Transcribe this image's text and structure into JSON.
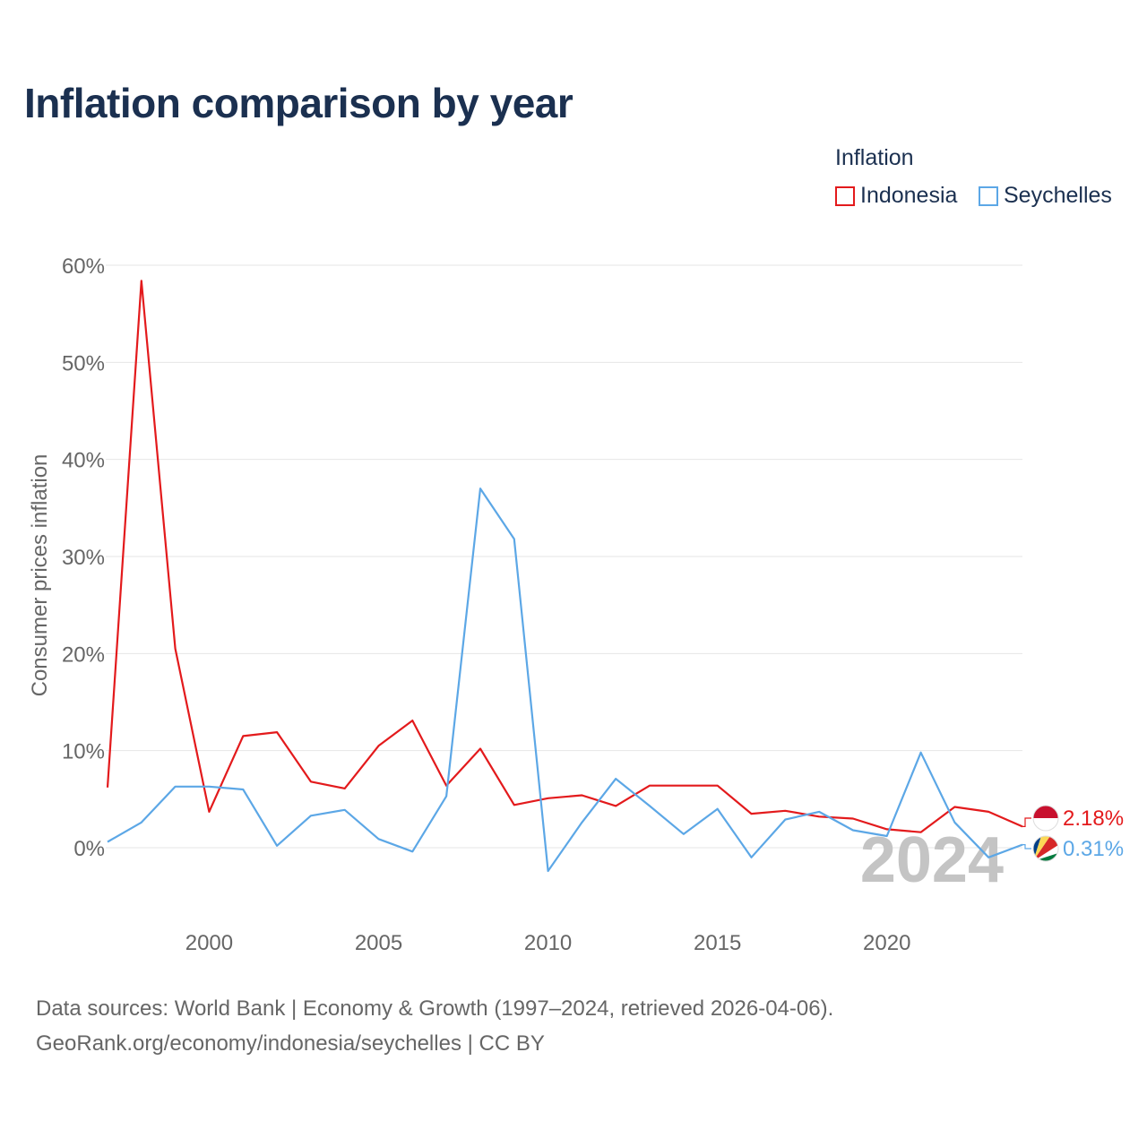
{
  "title": "Inflation comparison by year",
  "legend": {
    "title": "Inflation",
    "items": [
      {
        "name": "Indonesia",
        "color": "#e31a1c"
      },
      {
        "name": "Seychelles",
        "color": "#5ca7e6"
      }
    ]
  },
  "watermark_year": "2024",
  "end_labels": {
    "indonesia": "2.18%",
    "seychelles": "0.31%"
  },
  "source": {
    "line1": "Data sources: World Bank | Economy & Growth (1997–2024, retrieved 2026-04-06).",
    "line2": "GeoRank.org/economy/indonesia/seychelles | CC BY"
  },
  "chart_data": {
    "type": "line",
    "ylabel": "Consumer prices inflation",
    "xlabel": "",
    "x": [
      1997,
      1998,
      1999,
      2000,
      2001,
      2002,
      2003,
      2004,
      2005,
      2006,
      2007,
      2008,
      2009,
      2010,
      2011,
      2012,
      2013,
      2014,
      2015,
      2016,
      2017,
      2018,
      2019,
      2020,
      2021,
      2022,
      2023,
      2024
    ],
    "xlim": [
      1997,
      2024
    ],
    "ylim": [
      -6,
      60
    ],
    "y_ticks": [
      0,
      10,
      20,
      30,
      40,
      50,
      60
    ],
    "y_tick_labels": [
      "0%",
      "10%",
      "20%",
      "30%",
      "40%",
      "50%",
      "60%"
    ],
    "x_ticks": [
      2000,
      2005,
      2010,
      2015,
      2020
    ],
    "x_tick_labels": [
      "2000",
      "2005",
      "2010",
      "2015",
      "2020"
    ],
    "grid": true,
    "series": [
      {
        "name": "Indonesia",
        "color": "#e31a1c",
        "values": [
          6.2,
          58.4,
          20.5,
          3.7,
          11.5,
          11.9,
          6.8,
          6.1,
          10.5,
          13.1,
          6.4,
          10.2,
          4.4,
          5.1,
          5.4,
          4.3,
          6.4,
          6.4,
          6.4,
          3.5,
          3.8,
          3.2,
          3.0,
          1.9,
          1.6,
          4.2,
          3.7,
          2.18
        ]
      },
      {
        "name": "Seychelles",
        "color": "#5ca7e6",
        "values": [
          0.6,
          2.6,
          6.3,
          6.3,
          6.0,
          0.2,
          3.3,
          3.9,
          0.9,
          -0.4,
          5.3,
          37.0,
          31.8,
          -2.4,
          2.6,
          7.1,
          4.3,
          1.4,
          4.0,
          -1.0,
          2.9,
          3.7,
          1.8,
          1.2,
          9.8,
          2.6,
          -1.0,
          0.31
        ]
      }
    ]
  }
}
